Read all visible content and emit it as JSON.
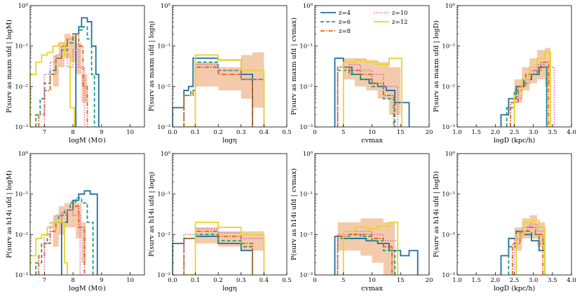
{
  "figure": {
    "caption_free": true
  },
  "legend": {
    "entries": [
      {
        "label": "z=4",
        "color": "#1f6f9f",
        "dash": "solid"
      },
      {
        "label": "z=6",
        "color": "#1a9f7a",
        "dash": "dashed"
      },
      {
        "label": "z=8",
        "color": "#e0621a",
        "dash": "dashdot"
      },
      {
        "label": "z=10",
        "color": "#d074b8",
        "dash": "dotted"
      },
      {
        "label": "z=12",
        "color": "#e8d42a",
        "dash": "solid"
      }
    ]
  },
  "chart_data": [
    {
      "type": "step-histogram",
      "row": "maxm",
      "col": 0,
      "xlabel": "logM (M⊙)",
      "ylabel": "P(surv as maxm ufd | logM)",
      "xlim": [
        6.5,
        10.5
      ],
      "ylim": [
        0.001,
        1
      ],
      "yscale": "log",
      "xticks": [
        "7",
        "8",
        "9",
        "10"
      ],
      "series": [
        {
          "name": "z=4",
          "edges": [
            8.1,
            8.2,
            8.3,
            8.5,
            8.65,
            8.8,
            8.9
          ],
          "values": [
            0.2,
            0.3,
            0.5,
            0.4,
            0.1,
            0.02
          ]
        },
        {
          "name": "z=6",
          "edges": [
            6.7,
            6.85,
            7.0,
            7.2,
            7.4,
            7.6,
            7.8,
            8.0,
            8.2,
            8.35,
            8.5,
            8.65,
            8.75
          ],
          "values": [
            0.002,
            0.005,
            0.012,
            0.025,
            0.05,
            0.08,
            0.12,
            0.2,
            0.25,
            0.3,
            0.15,
            0.02
          ]
        },
        {
          "name": "z=8",
          "edges": [
            6.8,
            7.0,
            7.2,
            7.4,
            7.6,
            7.8,
            8.0,
            8.2,
            8.35,
            8.5
          ],
          "values": [
            0.002,
            0.008,
            0.02,
            0.05,
            0.1,
            0.15,
            0.2,
            0.1,
            0.01
          ]
        },
        {
          "name": "z=10",
          "edges": [
            7.0,
            7.2,
            7.4,
            7.6,
            7.8,
            8.0,
            8.2,
            8.4
          ],
          "values": [
            0.02,
            0.04,
            0.06,
            0.08,
            0.03,
            0.08,
            0.03
          ]
        },
        {
          "name": "z=12",
          "edges": [
            6.5,
            6.7,
            6.9,
            7.1,
            7.3,
            7.5,
            7.7,
            7.9,
            8.05
          ],
          "values": [
            0.02,
            0.04,
            0.06,
            0.07,
            0.1,
            0.12,
            0.06,
            0.003
          ]
        }
      ],
      "band": {
        "edges": [
          7.3,
          7.5,
          7.7,
          7.9,
          8.1,
          8.3,
          8.5
        ],
        "lo": [
          0.01,
          0.03,
          0.05,
          0.04,
          0.02,
          0.004
        ],
        "hi": [
          0.06,
          0.12,
          0.2,
          0.18,
          0.12,
          0.02
        ]
      }
    },
    {
      "type": "step-histogram",
      "row": "maxm",
      "col": 1,
      "xlabel": "logη",
      "ylabel": "P(surv as maxm ufd | logη)",
      "xlim": [
        0.0,
        0.5
      ],
      "ylim": [
        0.001,
        1
      ],
      "yscale": "log",
      "xticks": [
        "0.0",
        "0.1",
        "0.2",
        "0.3",
        "0.4",
        "0.5"
      ],
      "series": [
        {
          "name": "z=4",
          "edges": [
            0.0,
            0.05,
            0.07,
            0.09,
            0.2,
            0.3,
            0.35
          ],
          "values": [
            0.003,
            0.008,
            0.01,
            0.05,
            0.045,
            0.02
          ]
        },
        {
          "name": "z=6",
          "edges": [
            0.05,
            0.08,
            0.1,
            0.2,
            0.3,
            0.4
          ],
          "values": [
            0.006,
            0.008,
            0.04,
            0.025,
            0.015
          ]
        },
        {
          "name": "z=8",
          "edges": [
            0.05,
            0.09,
            0.1,
            0.2,
            0.3,
            0.35
          ],
          "values": [
            0.006,
            0.008,
            0.03,
            0.02,
            0.015
          ]
        },
        {
          "name": "z=10",
          "edges": [
            0.1,
            0.2,
            0.3,
            0.4
          ],
          "values": [
            0.035,
            0.025,
            0.015
          ]
        },
        {
          "name": "z=12",
          "edges": [
            0.05,
            0.1,
            0.2,
            0.3,
            0.4
          ],
          "values": [
            0.001,
            0.06,
            0.045,
            0.025
          ]
        }
      ],
      "band": {
        "edges": [
          0.1,
          0.2,
          0.3,
          0.35,
          0.4
        ],
        "lo": [
          0.01,
          0.008,
          0.005,
          0.003
        ],
        "hi": [
          0.04,
          0.03,
          0.06,
          0.07
        ]
      }
    },
    {
      "type": "step-histogram",
      "row": "maxm",
      "col": 2,
      "xlabel": "cvmax",
      "ylabel": "P(surv as maxm ufd | cvmax)",
      "xlim": [
        0,
        20
      ],
      "ylim": [
        0.001,
        1
      ],
      "yscale": "log",
      "xticks": [
        "0",
        "5",
        "10",
        "15",
        "20"
      ],
      "series": [
        {
          "name": "z=4",
          "edges": [
            3.5,
            5,
            6.5,
            8,
            9.5,
            11,
            12.5,
            14,
            16.5
          ],
          "values": [
            0.05,
            0.03,
            0.02,
            0.015,
            0.012,
            0.01,
            0.008,
            0.004
          ]
        },
        {
          "name": "z=6",
          "edges": [
            4,
            6,
            8,
            10,
            12,
            14
          ],
          "values": [
            0.025,
            0.02,
            0.015,
            0.01,
            0.005
          ]
        },
        {
          "name": "z=8",
          "edges": [
            4,
            6,
            8,
            10,
            12,
            13.8
          ],
          "values": [
            0.03,
            0.025,
            0.02,
            0.012,
            0.006
          ]
        },
        {
          "name": "z=10",
          "edges": [
            4,
            6,
            8,
            10,
            12,
            14.5
          ],
          "values": [
            0.03,
            0.035,
            0.025,
            0.02,
            0.01
          ]
        },
        {
          "name": "z=12",
          "edges": [
            5,
            7,
            9,
            11,
            13,
            15.2
          ],
          "values": [
            0.04,
            0.045,
            0.04,
            0.035,
            0.05
          ]
        }
      ],
      "band": {
        "edges": [
          5,
          7,
          9,
          11,
          13,
          15
        ],
        "lo": [
          0.015,
          0.01,
          0.008,
          0.005,
          0.002
        ],
        "hi": [
          0.05,
          0.05,
          0.045,
          0.04,
          0.03
        ]
      }
    },
    {
      "type": "step-histogram",
      "row": "maxm",
      "col": 3,
      "xlabel": "logD (kpc/h)",
      "ylabel": "P(surv as maxm ufd | logD)",
      "xlim": [
        1.0,
        4.0
      ],
      "ylim": [
        0.001,
        1
      ],
      "yscale": "log",
      "xticks": [
        "1.0",
        "1.5",
        "2.0",
        "2.5",
        "3.0",
        "3.5",
        "4.0"
      ],
      "series": [
        {
          "name": "z=4",
          "edges": [
            2.15,
            2.35,
            2.55,
            2.75,
            2.95,
            3.15,
            3.35
          ],
          "values": [
            0.002,
            0.005,
            0.01,
            0.015,
            0.02,
            0.03
          ]
        },
        {
          "name": "z=6",
          "edges": [
            2.3,
            2.5,
            2.7,
            2.9,
            3.1,
            3.35
          ],
          "values": [
            0.003,
            0.008,
            0.015,
            0.02,
            0.03
          ]
        },
        {
          "name": "z=8",
          "edges": [
            2.4,
            2.6,
            2.8,
            3.0,
            3.2,
            3.4
          ],
          "values": [
            0.004,
            0.01,
            0.02,
            0.025,
            0.04
          ]
        },
        {
          "name": "z=10",
          "edges": [
            2.5,
            2.7,
            2.9,
            3.1,
            3.3,
            3.55
          ],
          "values": [
            0.005,
            0.012,
            0.025,
            0.035,
            0.03
          ]
        },
        {
          "name": "z=12",
          "edges": [
            2.5,
            2.7,
            2.9,
            3.1,
            3.3,
            3.45
          ],
          "values": [
            0.006,
            0.015,
            0.03,
            0.05,
            0.07
          ]
        }
      ],
      "band": {
        "edges": [
          2.5,
          2.7,
          2.9,
          3.1,
          3.3,
          3.45
        ],
        "lo": [
          0.004,
          0.008,
          0.012,
          0.015,
          0.01
        ],
        "hi": [
          0.015,
          0.03,
          0.05,
          0.08,
          0.09
        ]
      }
    },
    {
      "type": "step-histogram",
      "row": "h14i",
      "col": 0,
      "xlabel": "logM (M⊙)",
      "ylabel": "P(surv as h14i ufd | logM)",
      "xlim": [
        6.5,
        10.5
      ],
      "ylim": [
        0.001,
        1
      ],
      "yscale": "log",
      "xticks": [
        "7",
        "8",
        "9",
        "10"
      ],
      "series": [
        {
          "name": "z=4",
          "edges": [
            7.6,
            7.8,
            8.0,
            8.2,
            8.4,
            8.6,
            8.85
          ],
          "values": [
            0.02,
            0.04,
            0.07,
            0.1,
            0.12,
            0.1
          ]
        },
        {
          "name": "z=6",
          "edges": [
            6.7,
            6.9,
            7.1,
            7.3,
            7.5,
            7.7,
            7.9,
            8.1,
            8.3,
            8.5,
            8.7
          ],
          "values": [
            0.002,
            0.006,
            0.015,
            0.02,
            0.03,
            0.04,
            0.06,
            0.08,
            0.06,
            0.02
          ]
        },
        {
          "name": "z=8",
          "edges": [
            6.8,
            7.0,
            7.2,
            7.4,
            7.6,
            7.8,
            8.0,
            8.2,
            8.4
          ],
          "values": [
            0.003,
            0.006,
            0.012,
            0.02,
            0.03,
            0.04,
            0.05,
            0.015
          ]
        },
        {
          "name": "z=10",
          "edges": [
            7.0,
            7.2,
            7.4,
            7.6,
            7.8,
            8.0,
            8.25
          ],
          "values": [
            0.01,
            0.02,
            0.03,
            0.035,
            0.04,
            0.03
          ]
        },
        {
          "name": "z=12",
          "edges": [
            6.5,
            6.7,
            6.9,
            7.1,
            7.3,
            7.5,
            7.7,
            7.8
          ],
          "values": [
            0.003,
            0.008,
            0.01,
            0.015,
            0.02,
            0.02,
            0.002
          ]
        }
      ],
      "band": {
        "edges": [
          7.3,
          7.5,
          7.7,
          7.9,
          8.1,
          8.3,
          8.45
        ],
        "lo": [
          0.005,
          0.01,
          0.015,
          0.015,
          0.008,
          0.002
        ],
        "hi": [
          0.03,
          0.05,
          0.06,
          0.07,
          0.06,
          0.02
        ]
      }
    },
    {
      "type": "step-histogram",
      "row": "h14i",
      "col": 1,
      "xlabel": "logη",
      "ylabel": "P(surv as h14i ufd | logη)",
      "xlim": [
        0.0,
        0.5
      ],
      "ylim": [
        0.001,
        1
      ],
      "yscale": "log",
      "xticks": [
        "0.0",
        "0.1",
        "0.2",
        "0.3",
        "0.4",
        "0.5"
      ],
      "series": [
        {
          "name": "z=4",
          "edges": [
            0.0,
            0.05,
            0.1,
            0.2,
            0.3,
            0.35
          ],
          "values": [
            0.006,
            0.008,
            0.009,
            0.006,
            0.004
          ]
        },
        {
          "name": "z=6",
          "edges": [
            0.05,
            0.1,
            0.2,
            0.3,
            0.35
          ],
          "values": [
            0.008,
            0.01,
            0.007,
            0.005
          ]
        },
        {
          "name": "z=8",
          "edges": [
            0.05,
            0.1,
            0.2,
            0.3,
            0.35
          ],
          "values": [
            0.008,
            0.012,
            0.009,
            0.006
          ]
        },
        {
          "name": "z=10",
          "edges": [
            0.05,
            0.1,
            0.2,
            0.3,
            0.4
          ],
          "values": [
            0.01,
            0.014,
            0.011,
            0.008
          ]
        },
        {
          "name": "z=12",
          "edges": [
            0.05,
            0.1,
            0.2,
            0.3,
            0.4
          ],
          "values": [
            0.001,
            0.02,
            0.015,
            0.01
          ]
        }
      ],
      "band": {
        "edges": [
          0.1,
          0.2,
          0.3,
          0.4
        ],
        "lo": [
          0.006,
          0.005,
          0.004
        ],
        "hi": [
          0.015,
          0.012,
          0.012
        ]
      }
    },
    {
      "type": "step-histogram",
      "row": "h14i",
      "col": 2,
      "xlabel": "cvmax",
      "ylabel": "P(surv as h14i ufd | cvmax)",
      "xlim": [
        0,
        20
      ],
      "ylim": [
        0.001,
        1
      ],
      "yscale": "log",
      "xticks": [
        "0",
        "5",
        "10",
        "15",
        "20"
      ],
      "series": [
        {
          "name": "z=4",
          "edges": [
            3.5,
            5,
            7,
            9,
            11,
            13,
            15,
            16.5,
            18
          ],
          "values": [
            0.009,
            0.008,
            0.008,
            0.007,
            0.006,
            0.004,
            0.003,
            0.004
          ]
        },
        {
          "name": "z=6",
          "edges": [
            4,
            6,
            8,
            10,
            12,
            14
          ],
          "values": [
            0.008,
            0.01,
            0.009,
            0.007,
            0.004
          ]
        },
        {
          "name": "z=8",
          "edges": [
            4,
            6,
            8,
            10,
            12,
            13.5
          ],
          "values": [
            0.009,
            0.01,
            0.01,
            0.008,
            0.005
          ]
        },
        {
          "name": "z=10",
          "edges": [
            4,
            6,
            8,
            10,
            12,
            14.5
          ],
          "values": [
            0.01,
            0.012,
            0.012,
            0.01,
            0.007
          ]
        },
        {
          "name": "z=12",
          "edges": [
            5,
            7,
            9,
            11,
            13,
            14.5
          ],
          "values": [
            0.012,
            0.015,
            0.014,
            0.016,
            0.02
          ]
        }
      ],
      "band": {
        "edges": [
          4,
          6,
          8,
          10,
          12,
          14
        ],
        "lo": [
          0.004,
          0.004,
          0.003,
          0.002,
          0.001
        ],
        "hi": [
          0.02,
          0.02,
          0.025,
          0.025,
          0.02
        ]
      }
    },
    {
      "type": "step-histogram",
      "row": "h14i",
      "col": 3,
      "xlabel": "logD (kpc/h)",
      "ylabel": "P(surv as h14i ufd | logD)",
      "xlim": [
        1.0,
        4.0
      ],
      "ylim": [
        0.001,
        1
      ],
      "yscale": "log",
      "xticks": [
        "1.0",
        "1.5",
        "2.0",
        "2.5",
        "3.0",
        "3.5",
        "4.0"
      ],
      "series": [
        {
          "name": "z=4",
          "edges": [
            2.15,
            2.35,
            2.55,
            2.75,
            2.95,
            3.15,
            3.3
          ],
          "values": [
            0.003,
            0.008,
            0.012,
            0.01,
            0.007,
            0.004
          ]
        },
        {
          "name": "z=6",
          "edges": [
            2.35,
            2.55,
            2.75,
            2.95,
            3.15,
            3.3
          ],
          "values": [
            0.005,
            0.01,
            0.012,
            0.01,
            0.006
          ]
        },
        {
          "name": "z=8",
          "edges": [
            2.45,
            2.65,
            2.85,
            3.05,
            3.25
          ],
          "values": [
            0.006,
            0.012,
            0.015,
            0.01
          ]
        },
        {
          "name": "z=10",
          "edges": [
            2.5,
            2.7,
            2.9,
            3.1,
            3.3
          ],
          "values": [
            0.008,
            0.015,
            0.018,
            0.012
          ]
        },
        {
          "name": "z=12",
          "edges": [
            2.55,
            2.75,
            2.95,
            3.15,
            3.3
          ],
          "values": [
            0.01,
            0.02,
            0.022,
            0.015
          ]
        }
      ],
      "band": {
        "edges": [
          2.5,
          2.7,
          2.9,
          3.1,
          3.3
        ],
        "lo": [
          0.004,
          0.008,
          0.008,
          0.005
        ],
        "hi": [
          0.015,
          0.025,
          0.03,
          0.02
        ]
      }
    }
  ]
}
